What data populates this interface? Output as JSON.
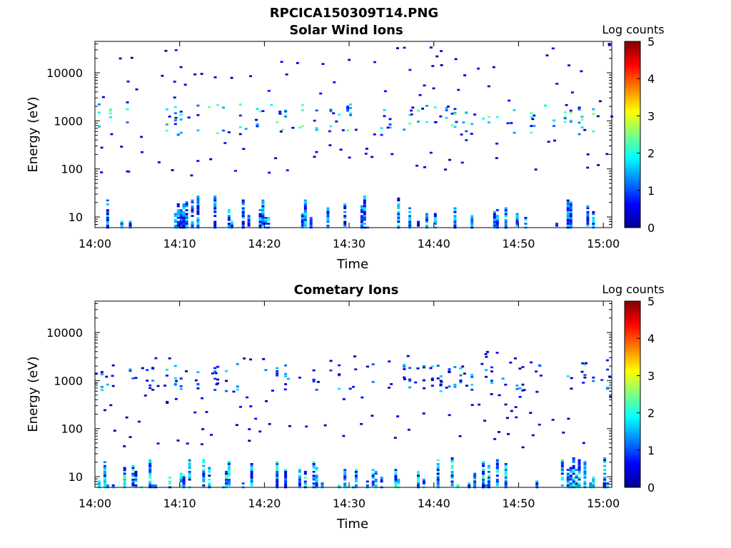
{
  "figure_title": "RPCICA150309T14.PNG",
  "chart_data": [
    {
      "type": "heatmap",
      "title": "Solar Wind Ions",
      "xlabel": "Time",
      "ylabel": "Energy (eV)",
      "x_ticks": [
        "14:00",
        "14:10",
        "14:20",
        "14:30",
        "14:40",
        "14:50",
        "15:00"
      ],
      "x_range": [
        "14:00",
        "15:01"
      ],
      "y_scale": "log",
      "y_ticks": [
        "10",
        "100",
        "1000",
        "10000"
      ],
      "y_range": [
        6,
        45000
      ],
      "colorbar": {
        "label": "Log counts",
        "ticks": [
          "0",
          "1",
          "2",
          "3",
          "4",
          "5"
        ],
        "range": [
          0,
          5
        ],
        "colormap": "jet"
      },
      "features": [
        {
          "kind": "low_energy_bursts",
          "energy_range": [
            6,
            28
          ],
          "log_counts_range": [
            0.2,
            1.9
          ]
        },
        {
          "kind": "solar_wind_band",
          "energy_range": [
            500,
            2200
          ],
          "log_counts_range": [
            0.5,
            2.6
          ]
        },
        {
          "kind": "scattered_hits",
          "energy_range": [
            70,
            40000
          ],
          "log_counts_range": [
            0.1,
            0.8
          ]
        }
      ]
    },
    {
      "type": "heatmap",
      "title": "Cometary Ions",
      "xlabel": "Time",
      "ylabel": "Energy (eV)",
      "x_ticks": [
        "14:00",
        "14:10",
        "14:20",
        "14:30",
        "14:40",
        "14:50",
        "15:00"
      ],
      "x_range": [
        "14:00",
        "15:01"
      ],
      "y_scale": "log",
      "y_ticks": [
        "10",
        "100",
        "1000",
        "10000"
      ],
      "y_range": [
        6,
        45000
      ],
      "colorbar": {
        "label": "Log counts",
        "ticks": [
          "0",
          "1",
          "2",
          "3",
          "4",
          "5"
        ],
        "range": [
          0,
          5
        ],
        "colormap": "jet"
      },
      "features": [
        {
          "kind": "low_energy_bursts",
          "energy_range": [
            6,
            25
          ],
          "log_counts_range": [
            0.3,
            2.4
          ]
        },
        {
          "kind": "band_1000eV",
          "energy_range": [
            600,
            2200
          ],
          "log_counts_range": [
            0.1,
            1.8
          ]
        },
        {
          "kind": "scattered_hits",
          "energy_range": [
            40,
            4000
          ],
          "log_counts_range": [
            0.1,
            0.7
          ]
        }
      ]
    }
  ]
}
